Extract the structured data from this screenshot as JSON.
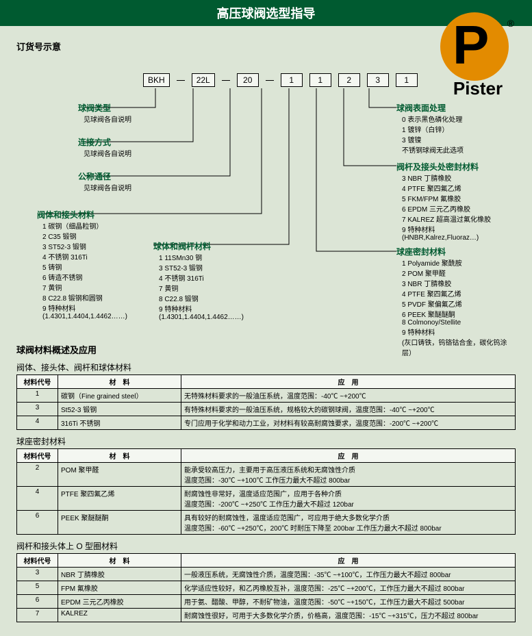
{
  "header": {
    "title": "高压球阀选型指导"
  },
  "logo": {
    "text": "Pister"
  },
  "subtitle": "订货号示意",
  "boxes": [
    "BKH",
    "22L",
    "20",
    "1",
    "1",
    "2",
    "3",
    "1"
  ],
  "left": {
    "type": {
      "title": "球阀类型",
      "note": "见球阀各自说明"
    },
    "conn": {
      "title": "连接方式",
      "note": "见球阀各自说明"
    },
    "dn": {
      "title": "公称通径",
      "note": "见球阀各自说明"
    },
    "body": {
      "title": "阀体和接头材料",
      "items": [
        "1 碳钢（细晶粒钢）",
        "2 C35 锻钢",
        "3 ST52-3 锻钢",
        "4 不锈钢 316Ti",
        "5 铸钢",
        "6 铸造不锈钢",
        "7 黄铜",
        "8 C22.8 锻钢和圆钢",
        "9 特种材料",
        "(1.4301,1.4404,1.4462……)"
      ]
    },
    "ball": {
      "title": "球体和阀杆材料",
      "items": [
        "1 11SMn30 钢",
        "3 ST52-3 锻钢",
        "4 不锈钢 316Ti",
        "7 黄铜",
        "8 C22.8 锻钢",
        "9 特种材料",
        "(1.4301,1.4404,1.4462……)"
      ]
    }
  },
  "right": {
    "surface": {
      "title": "球阀表面处理",
      "items": [
        "0 表示黑色磷化处理",
        "1 镀锌（白锌）",
        "3 镀镍",
        "不锈钢球阀无此选项"
      ]
    },
    "stem": {
      "title": "阀杆及接头处密封材料",
      "items": [
        "3 NBR 丁腈橡胶",
        "4 PTFE 聚四氟乙烯",
        "5 FKM/FPM 氟橡胶",
        "6 EPDM 三元乙丙橡胶",
        "7 KALREZ 超高温过氟化橡胶",
        "9 特种材料",
        "  (HNBR,Kalrez,Fluoraz…)"
      ]
    },
    "seat": {
      "title": "球座密封材料",
      "items": [
        "1 Polyamide 聚酰胺",
        "2 POM 聚甲醛",
        "3 NBR 丁腈橡胶",
        "4 PTFE 聚四氟乙烯",
        "5 PVDF 聚偏氟乙烯",
        "6 PEEK 聚醚醚酮",
        "8 Colmonoy/Stellite",
        "9 特种材料",
        "  (灰口铸铁，钨铬钴合金，碳化钨涂层）"
      ]
    }
  },
  "overview": "球阀材料概述及应用",
  "tbl1": {
    "caption": "阀体、接头体、阀杆和球体材料",
    "headers": [
      "材料代号",
      "材　料",
      "应　用"
    ],
    "rows": [
      [
        "1",
        "碳钢（Fine grained steel）",
        "无特殊材料要求的一般油压系统，温度范围：-40℃ ~+200℃"
      ],
      [
        "3",
        "St52-3 锻钢",
        "有特殊材料要求的一般油压系统，规格较大的碳钢球阀，温度范围：-40℃ ~+200℃"
      ],
      [
        "4",
        "316Ti 不锈钢",
        "专门应用于化学和动力工业，对材料有较高耐腐蚀要求，温度范围：-200℃ ~+200℃"
      ]
    ]
  },
  "tbl2": {
    "caption": "球座密封材料",
    "headers": [
      "材料代号",
      "材　料",
      "应　用"
    ],
    "rows": [
      [
        "2",
        "POM 聚甲醛",
        "能承受较高压力，主要用于高压液压系统和无腐蚀性介质\n温度范围：-30℃ ~+100℃ 工作压力最大不超过 800bar"
      ],
      [
        "4",
        "PTFE 聚四氟乙烯",
        "耐腐蚀性非常好，温度适应范围广，应用于各种介质\n温度范围：-200℃ ~+250℃ 工作压力最大不超过 120bar"
      ],
      [
        "6",
        "PEEK 聚醚醚酮",
        "具有较好的耐腐蚀性，温度适应范围广，可应用于绝大多数化学介质\n温度范围：-60℃ ~+250℃，200℃ 时耐压下降至 200bar 工作压力最大不超过 800bar"
      ]
    ]
  },
  "tbl3": {
    "caption": "阀杆和接头体上 O 型圈材料",
    "headers": [
      "材料代号",
      "材　料",
      "应　用"
    ],
    "rows": [
      [
        "3",
        "NBR 丁腈橡胶",
        "一般液压系统，无腐蚀性介质，温度范围：-35℃ ~+100℃，工作压力最大不超过 800bar"
      ],
      [
        "5",
        "FPM 氟橡胶",
        "化学适应性较好，和乙丙橡胶互补，温度范围：-25℃ ~+200℃，工作压力最大不超过 800bar"
      ],
      [
        "6",
        "EPDM 三元乙丙橡胶",
        "用于氨、醋酸、甲醇，不耐矿物油，温度范围：-50℃ ~+150℃，工作压力最大不超过 500bar"
      ],
      [
        "7",
        "KALREZ",
        "耐腐蚀性很好，可用于大多数化学介质，价格高，温度范围：-15℃ ~+315℃，压力不超过 800bar"
      ]
    ]
  },
  "colors": {
    "header_bg": "#005a30",
    "page_bg": "#dce5d6",
    "logo_orange": "#e38b00",
    "line": "#000000"
  }
}
